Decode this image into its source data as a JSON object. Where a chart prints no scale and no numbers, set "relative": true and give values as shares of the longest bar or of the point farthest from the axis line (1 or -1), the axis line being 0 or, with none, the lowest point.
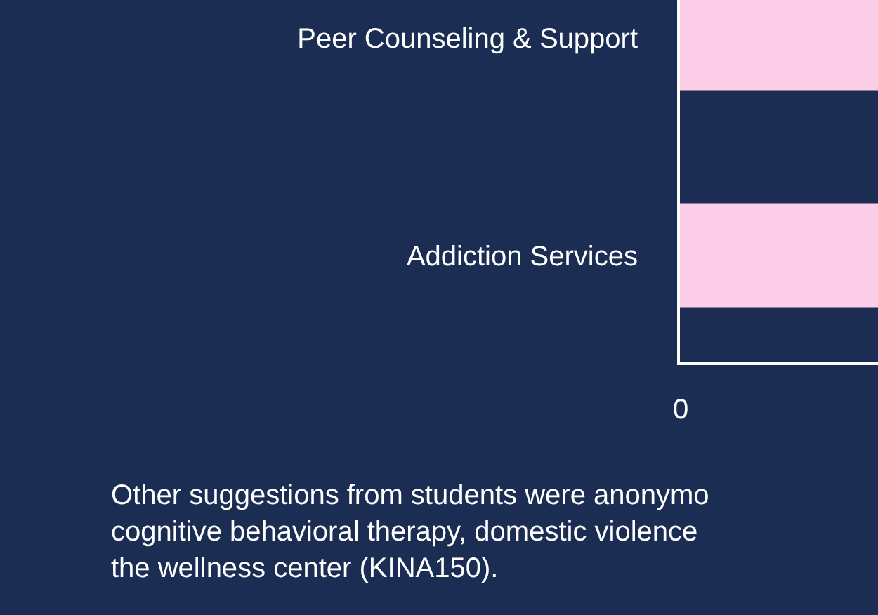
{
  "chart_data": {
    "type": "bar",
    "orientation": "horizontal",
    "relative": true,
    "categories": [
      "Peer Counseling & Support",
      "Addiction Services"
    ],
    "values": [
      1,
      1
    ],
    "color": "#fbcde6",
    "grid": false,
    "annotations": [
      "0",
      "Other suggestions from students were anonymo\ncognitive behavioral therapy, domestic violence\nthe wellness center (KINA150)."
    ]
  }
}
